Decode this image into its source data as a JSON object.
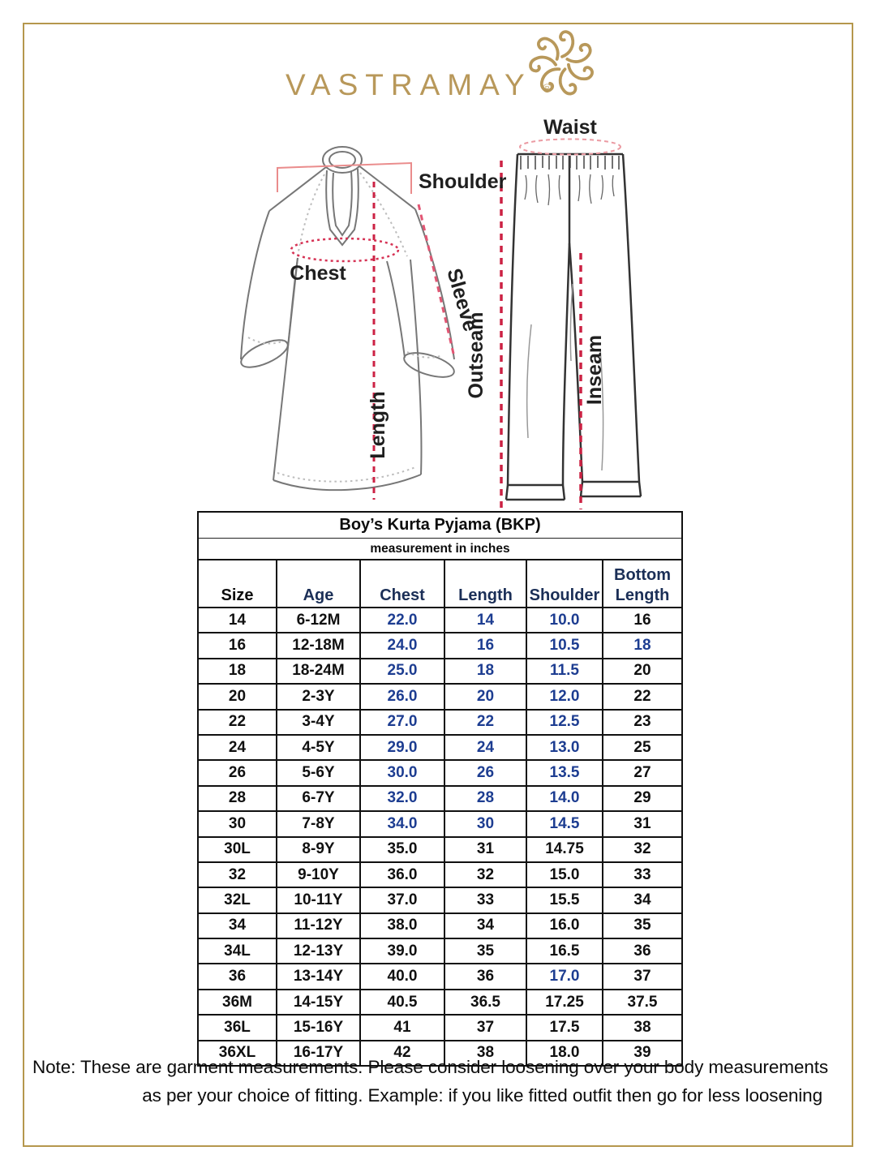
{
  "brand": {
    "name": "VASTRAMAY",
    "registered": "®"
  },
  "diagram": {
    "labels": {
      "shoulder": "Shoulder",
      "chest": "Chest",
      "sleeve": "Sleeve",
      "length": "Length",
      "waist": "Waist",
      "outseam": "Outseam",
      "inseam": "Inseam"
    }
  },
  "size_chart": {
    "title": "Boy’s Kurta Pyjama (BKP)",
    "subtitle": "measurement in inches",
    "columns": [
      "Size",
      "Age",
      "Chest",
      "Length",
      "Shoulder",
      "Bottom Length"
    ],
    "rows": [
      [
        "14",
        "6-12M",
        "22.0",
        "14",
        "10.0",
        "16"
      ],
      [
        "16",
        "12-18M",
        "24.0",
        "16",
        "10.5",
        "18"
      ],
      [
        "18",
        "18-24M",
        "25.0",
        "18",
        "11.5",
        "20"
      ],
      [
        "20",
        "2-3Y",
        "26.0",
        "20",
        "12.0",
        "22"
      ],
      [
        "22",
        "3-4Y",
        "27.0",
        "22",
        "12.5",
        "23"
      ],
      [
        "24",
        "4-5Y",
        "29.0",
        "24",
        "13.0",
        "25"
      ],
      [
        "26",
        "5-6Y",
        "30.0",
        "26",
        "13.5",
        "27"
      ],
      [
        "28",
        "6-7Y",
        "32.0",
        "28",
        "14.0",
        "29"
      ],
      [
        "30",
        "7-8Y",
        "34.0",
        "30",
        "14.5",
        "31"
      ],
      [
        "30L",
        "8-9Y",
        "35.0",
        "31",
        "14.75",
        "32"
      ],
      [
        "32",
        "9-10Y",
        "36.0",
        "32",
        "15.0",
        "33"
      ],
      [
        "32L",
        "10-11Y",
        "37.0",
        "33",
        "15.5",
        "34"
      ],
      [
        "34",
        "11-12Y",
        "38.0",
        "34",
        "16.0",
        "35"
      ],
      [
        "34L",
        "12-13Y",
        "39.0",
        "35",
        "16.5",
        "36"
      ],
      [
        "36",
        "13-14Y",
        "40.0",
        "36",
        "17.0",
        "37"
      ],
      [
        "36M",
        "14-15Y",
        "40.5",
        "36.5",
        "17.25",
        "37.5"
      ],
      [
        "36L",
        "15-16Y",
        "41",
        "37",
        "17.5",
        "38"
      ],
      [
        "36XL",
        "16-17Y",
        "42",
        "38",
        "18.0",
        "39"
      ]
    ],
    "navy_cells": [
      [
        0,
        2
      ],
      [
        0,
        3
      ],
      [
        0,
        4
      ],
      [
        1,
        2
      ],
      [
        1,
        3
      ],
      [
        1,
        4
      ],
      [
        1,
        5
      ],
      [
        2,
        2
      ],
      [
        2,
        3
      ],
      [
        2,
        4
      ],
      [
        3,
        2
      ],
      [
        3,
        3
      ],
      [
        3,
        4
      ],
      [
        4,
        2
      ],
      [
        4,
        3
      ],
      [
        4,
        4
      ],
      [
        5,
        2
      ],
      [
        5,
        3
      ],
      [
        5,
        4
      ],
      [
        6,
        2
      ],
      [
        6,
        3
      ],
      [
        6,
        4
      ],
      [
        7,
        2
      ],
      [
        7,
        3
      ],
      [
        7,
        4
      ],
      [
        8,
        2
      ],
      [
        8,
        3
      ],
      [
        8,
        4
      ],
      [
        14,
        4
      ]
    ],
    "colors": {
      "navy_value": "#1d3d91",
      "navy_header": "#1b2f57",
      "black": "#101010"
    }
  },
  "note": {
    "line1": "Note: These are garment measurements. Please consider loosening over your body measurements",
    "line2": "as per your choice of fitting. Example: if you like fitted outfit then go for less loosening"
  },
  "theme": {
    "gold": "#b8985a",
    "frame_gold": "#b5974d",
    "measure_red": "#cc2244"
  }
}
